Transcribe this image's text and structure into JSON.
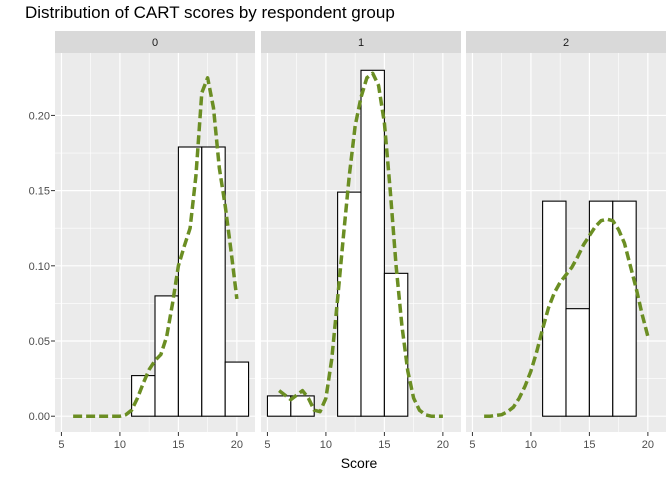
{
  "chart_data": {
    "type": "bar",
    "title": "Distribution of CART scores by respondent group",
    "xlabel": "Score",
    "ylabel": "",
    "ylim": [
      -0.0105,
      0.2415
    ],
    "xlim": [
      4.45,
      21.55
    ],
    "x_ticks": [
      "5",
      "10",
      "15",
      "20"
    ],
    "y_ticks": [
      "0.00",
      "0.05",
      "0.10",
      "0.15",
      "0.20"
    ],
    "grid": true,
    "legend": "none",
    "colors": {
      "panel_bg": "#ebebeb",
      "strip_bg": "#d9d9d9",
      "grid": "#ffffff",
      "bar_fill": "#ffffff",
      "bar_edge": "#000000",
      "density_line": "#6b8e23"
    },
    "panels": [
      {
        "label": "0",
        "bins": [
          {
            "x0": 5,
            "x1": 7,
            "density": 0.0
          },
          {
            "x0": 7,
            "x1": 9,
            "density": 0.0
          },
          {
            "x0": 9,
            "x1": 11,
            "density": 0.0
          },
          {
            "x0": 11,
            "x1": 13,
            "density": 0.027
          },
          {
            "x0": 13,
            "x1": 15,
            "density": 0.08
          },
          {
            "x0": 15,
            "x1": 17,
            "density": 0.179
          },
          {
            "x0": 17,
            "x1": 19,
            "density": 0.179
          },
          {
            "x0": 19,
            "x1": 21,
            "density": 0.036
          }
        ],
        "density_curve": {
          "x": [
            6,
            8,
            10,
            10.5,
            11,
            11.5,
            12,
            12.5,
            13,
            13.5,
            14,
            14.5,
            15,
            15.5,
            16,
            16.5,
            17,
            17.5,
            18,
            18.5,
            19,
            19.5,
            20
          ],
          "y": [
            0.0,
            0.0,
            0.0,
            0.001,
            0.004,
            0.012,
            0.022,
            0.031,
            0.037,
            0.041,
            0.053,
            0.075,
            0.1,
            0.113,
            0.125,
            0.16,
            0.215,
            0.225,
            0.205,
            0.165,
            0.14,
            0.11,
            0.078
          ]
        }
      },
      {
        "label": "1",
        "bins": [
          {
            "x0": 5,
            "x1": 7,
            "density": 0.0135
          },
          {
            "x0": 7,
            "x1": 9,
            "density": 0.0135
          },
          {
            "x0": 9,
            "x1": 11,
            "density": 0.0
          },
          {
            "x0": 11,
            "x1": 13,
            "density": 0.149
          },
          {
            "x0": 13,
            "x1": 15,
            "density": 0.23
          },
          {
            "x0": 15,
            "x1": 17,
            "density": 0.095
          },
          {
            "x0": 17,
            "x1": 19,
            "density": 0.0
          },
          {
            "x0": 19,
            "x1": 21,
            "density": 0.0
          }
        ],
        "density_curve": {
          "x": [
            6,
            6.5,
            7,
            7.5,
            8,
            8.5,
            9,
            9.5,
            10,
            10.5,
            11,
            11.5,
            12,
            12.5,
            13,
            13.5,
            14,
            14.5,
            15,
            15.5,
            16,
            16.5,
            17,
            17.5,
            18,
            18.5,
            19,
            19.5,
            20
          ],
          "y": [
            0.017,
            0.014,
            0.011,
            0.014,
            0.017,
            0.012,
            0.004,
            0.003,
            0.012,
            0.038,
            0.078,
            0.12,
            0.16,
            0.193,
            0.212,
            0.225,
            0.228,
            0.22,
            0.195,
            0.15,
            0.1,
            0.06,
            0.03,
            0.012,
            0.004,
            0.001,
            0.0,
            0.0,
            0.0
          ]
        }
      },
      {
        "label": "2",
        "bins": [
          {
            "x0": 5,
            "x1": 7,
            "density": 0.0
          },
          {
            "x0": 7,
            "x1": 9,
            "density": 0.0
          },
          {
            "x0": 9,
            "x1": 11,
            "density": 0.0
          },
          {
            "x0": 11,
            "x1": 13,
            "density": 0.143
          },
          {
            "x0": 13,
            "x1": 15,
            "density": 0.0715
          },
          {
            "x0": 15,
            "x1": 17,
            "density": 0.143
          },
          {
            "x0": 17,
            "x1": 19,
            "density": 0.143
          },
          {
            "x0": 19,
            "x1": 21,
            "density": 0.0
          }
        ],
        "density_curve": {
          "x": [
            6,
            6.5,
            7,
            7.5,
            8,
            8.5,
            9,
            9.5,
            10,
            10.5,
            11,
            11.5,
            12,
            12.5,
            13,
            13.5,
            14,
            14.5,
            15,
            15.5,
            16,
            16.5,
            17,
            17.5,
            18,
            18.5,
            19,
            19.5,
            20
          ],
          "y": [
            0.0,
            0.0,
            0.0005,
            0.001,
            0.003,
            0.006,
            0.012,
            0.02,
            0.03,
            0.043,
            0.058,
            0.072,
            0.082,
            0.089,
            0.094,
            0.099,
            0.106,
            0.114,
            0.12,
            0.126,
            0.13,
            0.131,
            0.13,
            0.124,
            0.115,
            0.1,
            0.085,
            0.068,
            0.053
          ]
        }
      }
    ]
  }
}
